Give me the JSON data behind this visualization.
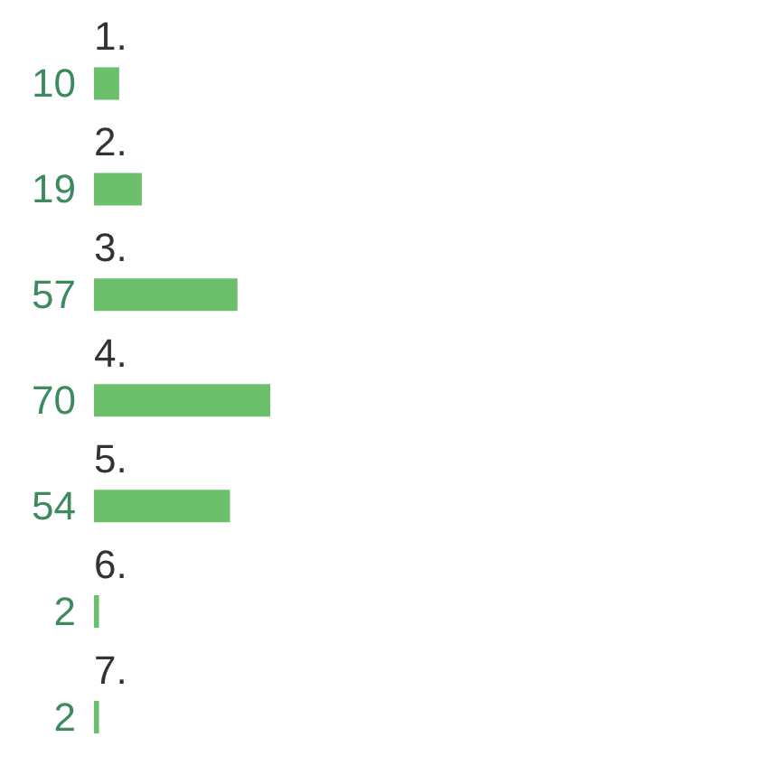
{
  "chart_data": {
    "type": "bar",
    "orientation": "horizontal",
    "categories": [
      "1.",
      "2.",
      "3.",
      "4.",
      "5.",
      "6.",
      "7."
    ],
    "values": [
      10,
      19,
      57,
      70,
      54,
      2,
      2
    ],
    "color": "#6cc06c",
    "data_labels": true
  }
}
